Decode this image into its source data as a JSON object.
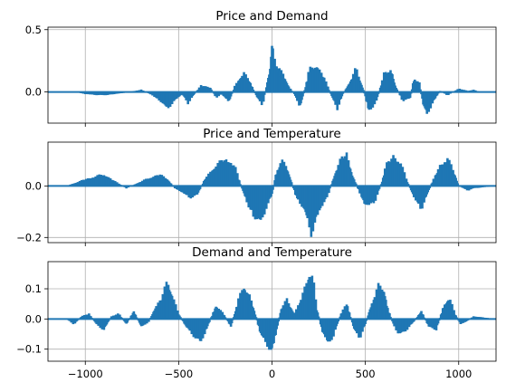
{
  "colors": {
    "series": "#1f77b4",
    "grid": "#b0b0b0",
    "frame": "#000000"
  },
  "chart_data": [
    {
      "type": "bar",
      "title": "Price and Demand",
      "xlabel": "",
      "ylabel": "",
      "xlim": [
        -1200,
        1200
      ],
      "ylim": [
        -0.25,
        0.52
      ],
      "yticks": [
        0.0,
        0.5
      ],
      "ytick_labels": [
        "0.0",
        "0.5"
      ],
      "xticks": [
        -1000,
        -500,
        0,
        500,
        1000
      ],
      "xtick_labels": [],
      "grid": true,
      "envelope_x": [
        -1200,
        -1050,
        -1000,
        -900,
        -800,
        -700,
        -640,
        -600,
        -560,
        -530,
        -480,
        -450,
        -420,
        -380,
        -330,
        -300,
        -270,
        -230,
        -200,
        -170,
        -150,
        -120,
        -80,
        -50,
        -30,
        -10,
        0,
        10,
        30,
        60,
        90,
        120,
        150,
        180,
        200,
        240,
        280,
        320,
        350,
        380,
        420,
        450,
        490,
        520,
        560,
        600,
        640,
        660,
        700,
        740,
        760,
        790,
        810,
        830,
        860,
        900,
        940,
        970,
        1000,
        1050,
        1080,
        1110,
        1200
      ],
      "envelope_y": [
        0.0,
        0.0,
        -0.02,
        -0.03,
        -0.01,
        0.02,
        -0.03,
        -0.08,
        -0.15,
        -0.09,
        -0.02,
        -0.1,
        -0.03,
        0.06,
        0.04,
        -0.05,
        -0.02,
        -0.09,
        0.05,
        0.13,
        0.17,
        0.1,
        -0.05,
        -0.12,
        0.05,
        0.22,
        0.47,
        0.32,
        0.22,
        0.16,
        0.05,
        -0.02,
        -0.14,
        0.05,
        0.2,
        0.24,
        0.13,
        -0.04,
        -0.15,
        -0.02,
        0.1,
        0.21,
        0.02,
        -0.18,
        -0.08,
        0.16,
        0.2,
        0.06,
        -0.08,
        -0.06,
        0.12,
        0.08,
        -0.12,
        -0.2,
        -0.1,
        0.01,
        -0.03,
        0.0,
        0.03,
        0.01,
        0.02,
        0.0,
        0.0
      ],
      "bar_spacing": 5
    },
    {
      "type": "bar",
      "title": "Price and Temperature",
      "xlabel": "",
      "ylabel": "",
      "xlim": [
        -1200,
        1200
      ],
      "ylim": [
        -0.22,
        0.17
      ],
      "yticks": [
        -0.2,
        0.0
      ],
      "ytick_labels": [
        "−0.2",
        "0.0"
      ],
      "xticks": [
        -1000,
        -500,
        0,
        500,
        1000
      ],
      "xtick_labels": [],
      "grid": true,
      "envelope_x": [
        -1200,
        -1100,
        -1030,
        -1000,
        -950,
        -900,
        -860,
        -820,
        -780,
        -700,
        -640,
        -600,
        -560,
        -520,
        -480,
        -440,
        -400,
        -360,
        -310,
        -250,
        -200,
        -170,
        -130,
        -100,
        -60,
        -30,
        0,
        20,
        50,
        80,
        100,
        130,
        170,
        210,
        250,
        300,
        340,
        370,
        400,
        430,
        470,
        500,
        550,
        590,
        610,
        650,
        690,
        720,
        760,
        800,
        820,
        860,
        900,
        940,
        980,
        1000,
        1050,
        1080,
        1200
      ],
      "envelope_y": [
        0.0,
        0.0,
        0.02,
        0.03,
        0.04,
        0.05,
        0.03,
        0.01,
        -0.01,
        0.02,
        0.04,
        0.05,
        0.03,
        -0.01,
        -0.03,
        -0.05,
        -0.04,
        0.03,
        0.08,
        0.12,
        0.09,
        0.01,
        -0.08,
        -0.13,
        -0.16,
        -0.09,
        -0.04,
        0.05,
        0.11,
        0.08,
        0.03,
        -0.05,
        -0.1,
        -0.2,
        -0.12,
        -0.04,
        0.06,
        0.12,
        0.14,
        0.05,
        -0.03,
        -0.09,
        -0.07,
        0.02,
        0.09,
        0.13,
        0.1,
        0.03,
        -0.05,
        -0.1,
        -0.06,
        0.02,
        0.09,
        0.12,
        0.05,
        0.0,
        -0.02,
        -0.01,
        0.0
      ],
      "bar_spacing": 5
    },
    {
      "type": "bar",
      "title": "Demand and Temperature",
      "xlabel": "",
      "ylabel": "",
      "xlim": [
        -1200,
        1200
      ],
      "ylim": [
        -0.14,
        0.19
      ],
      "yticks": [
        -0.1,
        0.0,
        0.1
      ],
      "ytick_labels": [
        "−0.1",
        "0.0",
        "0.1"
      ],
      "xticks": [
        -1000,
        -500,
        0,
        500,
        1000
      ],
      "xtick_labels": [
        "−1000",
        "−500",
        "0",
        "500",
        "1000"
      ],
      "grid": true,
      "envelope_x": [
        -1200,
        -1100,
        -1060,
        -1020,
        -980,
        -940,
        -900,
        -860,
        -820,
        -780,
        -740,
        -700,
        -660,
        -620,
        -590,
        -560,
        -540,
        -500,
        -460,
        -420,
        -380,
        -340,
        -300,
        -260,
        -220,
        -180,
        -150,
        -120,
        -90,
        -60,
        -30,
        0,
        20,
        50,
        80,
        120,
        160,
        200,
        220,
        240,
        270,
        300,
        330,
        370,
        400,
        440,
        470,
        500,
        530,
        570,
        600,
        620,
        650,
        680,
        720,
        760,
        800,
        840,
        880,
        920,
        950,
        980,
        1010,
        1040,
        1080,
        1200
      ],
      "envelope_y": [
        0.0,
        0.0,
        -0.02,
        0.01,
        0.02,
        -0.02,
        -0.04,
        0.01,
        0.02,
        -0.02,
        0.03,
        -0.03,
        -0.01,
        0.05,
        0.08,
        0.14,
        0.1,
        0.02,
        -0.03,
        -0.06,
        -0.09,
        -0.02,
        0.05,
        0.02,
        -0.03,
        0.07,
        0.12,
        0.09,
        0.02,
        -0.06,
        -0.09,
        -0.12,
        -0.06,
        0.04,
        0.07,
        0.02,
        0.08,
        0.17,
        0.15,
        0.04,
        -0.05,
        -0.09,
        -0.06,
        0.02,
        0.06,
        -0.04,
        -0.07,
        -0.02,
        0.05,
        0.12,
        0.11,
        0.04,
        -0.02,
        -0.06,
        -0.04,
        -0.01,
        0.03,
        -0.03,
        -0.04,
        0.05,
        0.08,
        0.02,
        -0.02,
        -0.01,
        0.01,
        0.0
      ],
      "bar_spacing": 5
    }
  ]
}
